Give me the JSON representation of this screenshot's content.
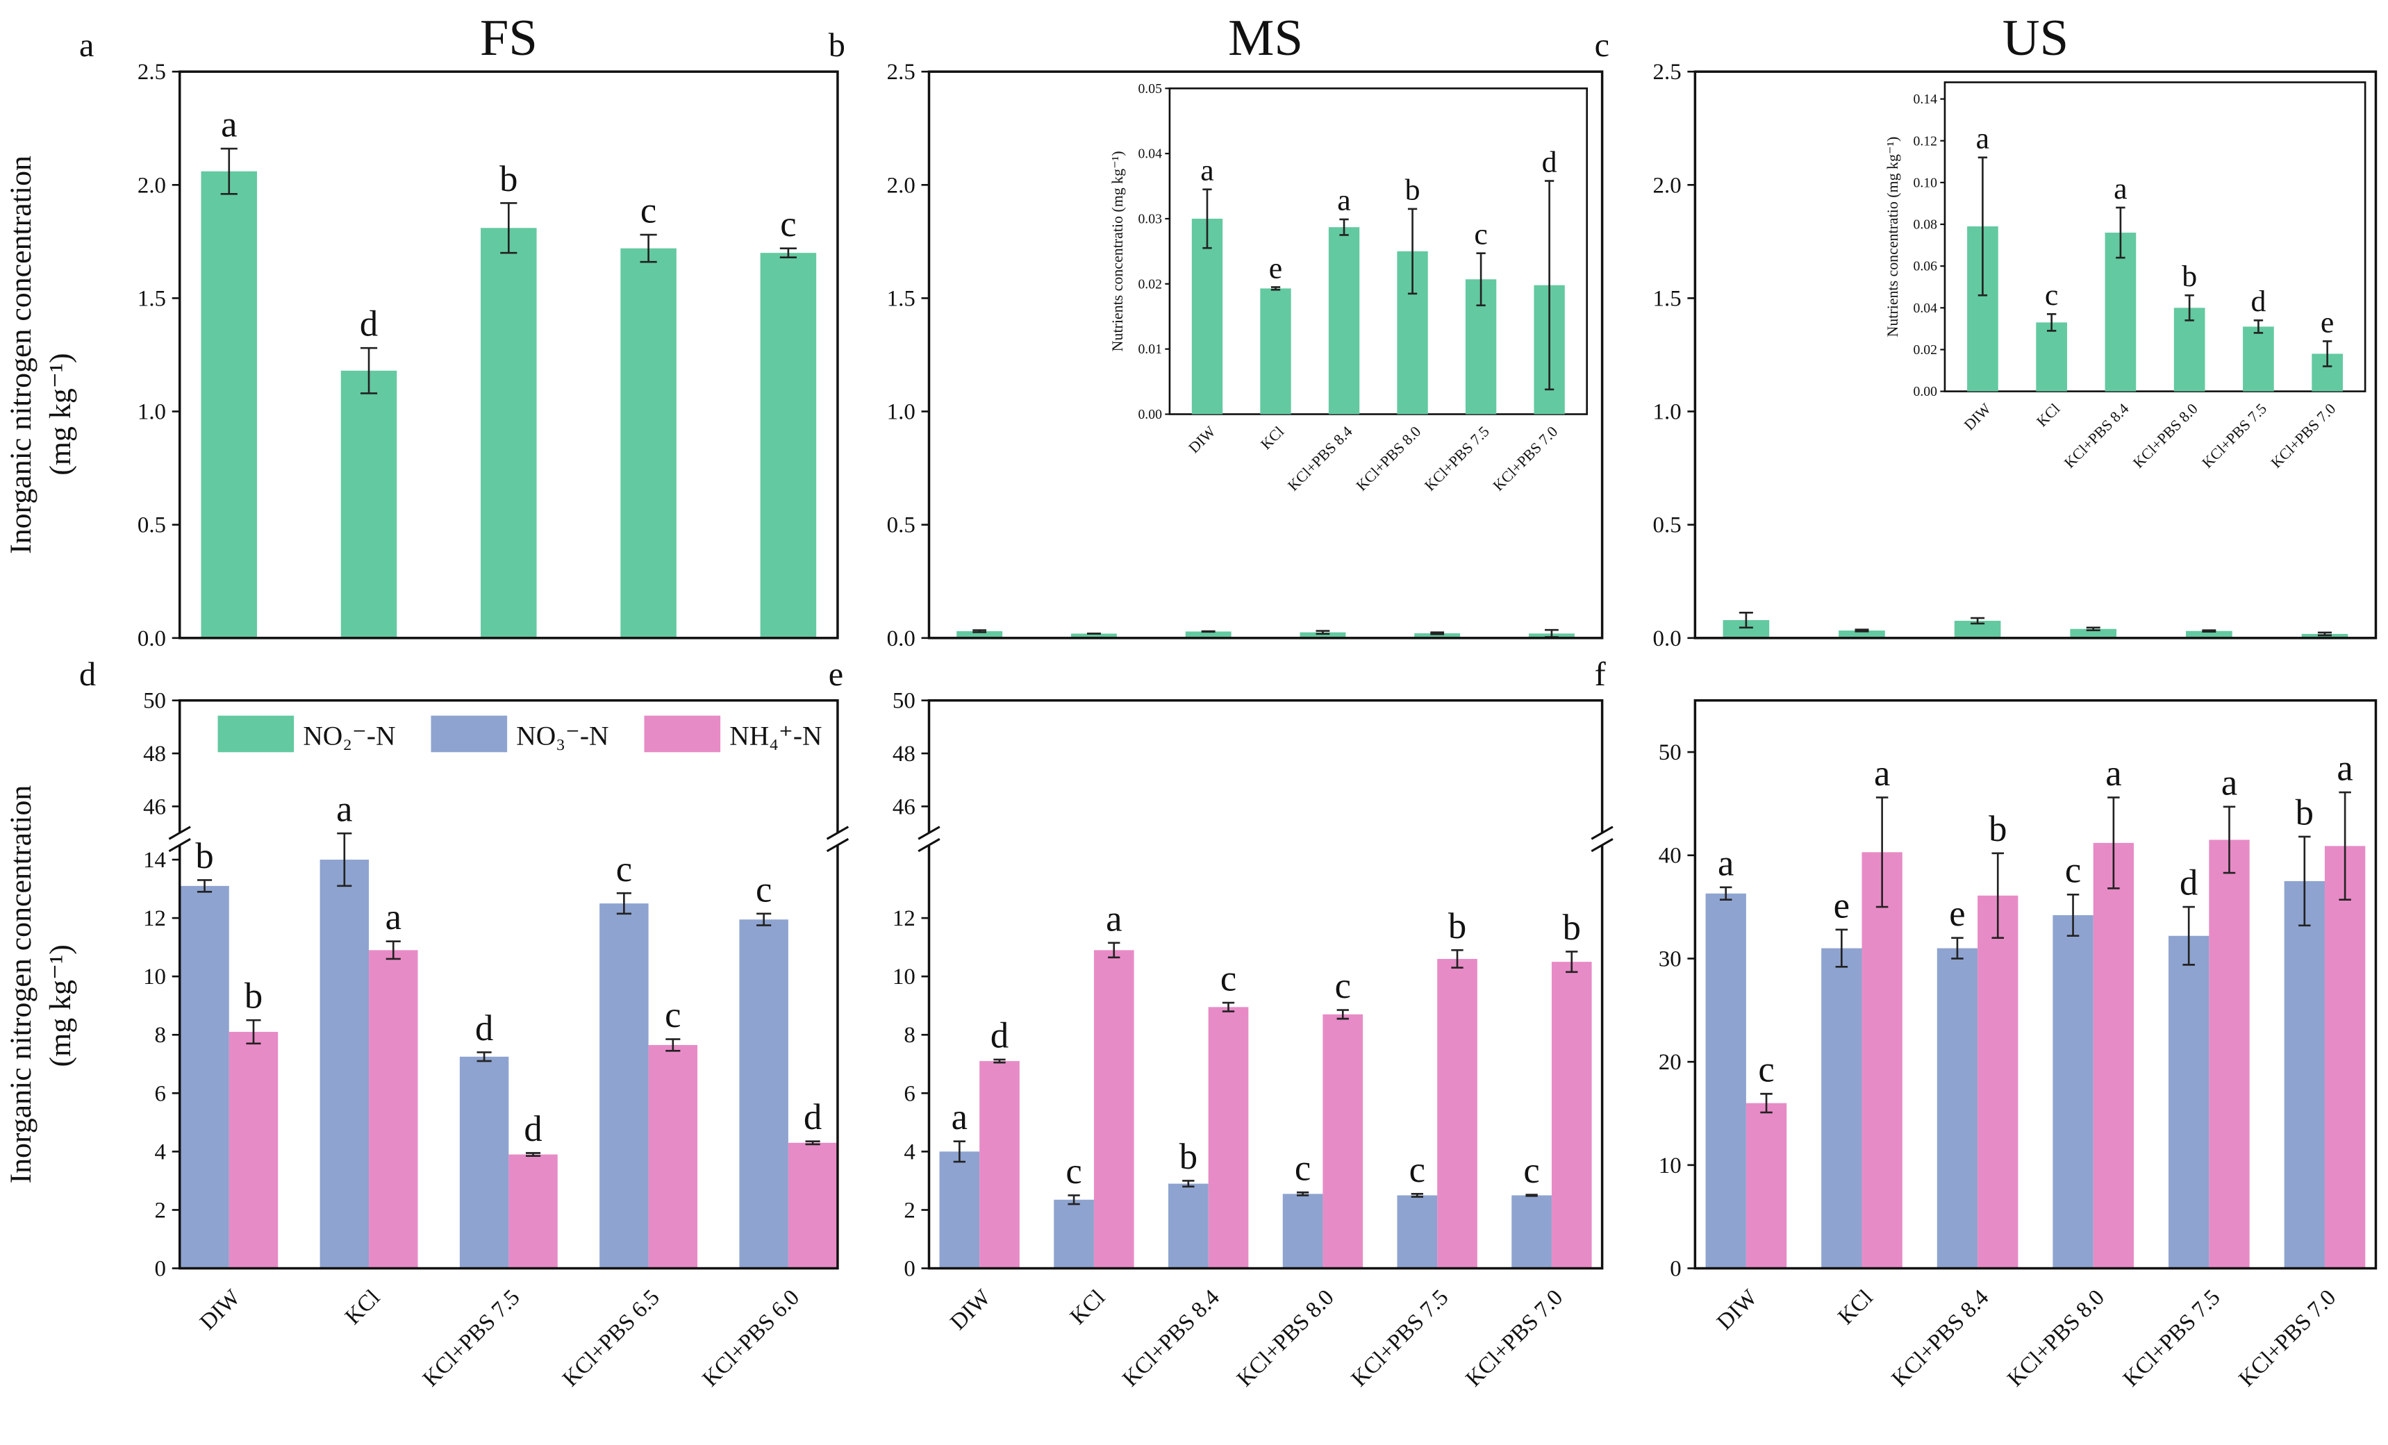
{
  "chart_data": [
    {
      "type": "bar",
      "panel": "a",
      "title": "FS",
      "ylabel": [
        "Inorganic nitrogen concentration",
        "(mg kg⁻¹)"
      ],
      "ylim": [
        0,
        2.5
      ],
      "yticks": [
        {
          "value": 0,
          "label": "0.0"
        },
        0.5,
        {
          "value": 1,
          "label": "1.0"
        },
        1.5,
        {
          "value": 2,
          "label": "2.0"
        },
        2.5
      ],
      "series": [
        {
          "color": "#63c9a0",
          "values": [
            2.06,
            1.18,
            1.81,
            1.72,
            1.7
          ],
          "errors": [
            0.1,
            0.1,
            0.11,
            0.06,
            0.02
          ],
          "letters": [
            "a",
            "d",
            "b",
            "c",
            "c"
          ]
        }
      ]
    },
    {
      "type": "bar",
      "panel": "b",
      "title": "MS",
      "ylim": [
        0,
        2.5
      ],
      "yticks": [
        {
          "value": 0,
          "label": "0.0"
        },
        0.5,
        {
          "value": 1,
          "label": "1.0"
        },
        1.5,
        {
          "value": 2,
          "label": "2.0"
        },
        2.5
      ],
      "series": [
        {
          "color": "#63c9a0",
          "values": [
            0.03,
            0.0193,
            0.0287,
            0.025,
            0.0207,
            0.0198
          ],
          "errors": [
            0.0045,
            0.0002,
            0.0012,
            0.0065,
            0.004,
            0.016
          ]
        }
      ],
      "inset": {
        "ylabel": "Nutrients concentratio (mg kg⁻¹)",
        "ylim": [
          0,
          0.05
        ],
        "yticks": [
          {
            "value": 0,
            "label": "0.00"
          },
          0.01,
          0.02,
          0.03,
          0.04,
          0.05
        ],
        "categories": [
          "DIW",
          "KCl",
          "KCl+PBS 8.4",
          "KCl+PBS 8.0",
          "KCl+PBS 7.5",
          "KCl+PBS 7.0"
        ],
        "letters": [
          "a",
          "e",
          "a",
          "b",
          "c",
          "d"
        ]
      }
    },
    {
      "type": "bar",
      "panel": "c",
      "title": "US",
      "ylim": [
        0,
        2.5
      ],
      "yticks": [
        {
          "value": 0,
          "label": "0.0"
        },
        0.5,
        {
          "value": 1,
          "label": "1.0"
        },
        1.5,
        {
          "value": 2,
          "label": "2.0"
        },
        2.5
      ],
      "series": [
        {
          "color": "#63c9a0",
          "values": [
            0.079,
            0.033,
            0.076,
            0.04,
            0.031,
            0.018
          ],
          "errors": [
            0.033,
            0.004,
            0.012,
            0.006,
            0.003,
            0.006
          ]
        }
      ],
      "inset": {
        "ylabel": "Nutrients concentratio (mg kg⁻¹)",
        "ylim": [
          0,
          0.148
        ],
        "yticks": [
          {
            "value": 0,
            "label": "0.00"
          },
          0.02,
          0.04,
          0.06,
          0.08,
          {
            "value": 0.1,
            "label": "0.10"
          },
          0.12,
          0.14
        ],
        "categories": [
          "DIW",
          "KCl",
          "KCl+PBS 8.4",
          "KCl+PBS 8.0",
          "KCl+PBS 7.5",
          "KCl+PBS 7.0"
        ],
        "letters": [
          "a",
          "c",
          "a",
          "b",
          "d",
          "e"
        ]
      }
    },
    {
      "type": "bar",
      "panel": "d",
      "ylabel": [
        "Inorganic nitrogen concentration",
        "(mg kg⁻¹)"
      ],
      "ylim": [
        0,
        14.5
      ],
      "yticks": [
        0,
        2,
        4,
        6,
        8,
        10,
        12,
        14
      ],
      "broken_axis": {
        "ylim": [
          45,
          50
        ],
        "yticks": [
          46,
          48,
          50
        ]
      },
      "categories": [
        "DIW",
        "KCl",
        "KCl+PBS 7.5",
        "KCl+PBS 6.5",
        "KCl+PBS 6.0"
      ],
      "legend_swatches": [
        {
          "name": "NO₂⁻-N",
          "color": "#63c9a0"
        }
      ],
      "series": [
        {
          "name": "NO₃⁻-N",
          "color": "#8ea3cf",
          "values": [
            13.1,
            14.0,
            7.25,
            12.5,
            11.95
          ],
          "errors": [
            0.2,
            0.9,
            0.15,
            0.35,
            0.2
          ],
          "letters": [
            "b",
            "a",
            "d",
            "c",
            "c"
          ]
        },
        {
          "name": "NH₄⁺-N",
          "color": "#e78bc6",
          "values": [
            8.1,
            10.9,
            3.9,
            7.65,
            4.3
          ],
          "errors": [
            0.4,
            0.3,
            0.05,
            0.2,
            0.05
          ],
          "letters": [
            "b",
            "a",
            "d",
            "c",
            "d"
          ]
        }
      ]
    },
    {
      "type": "bar",
      "panel": "e",
      "ylim": [
        0,
        14.5
      ],
      "yticks": [
        0,
        2,
        4,
        6,
        8,
        10,
        12
      ],
      "broken_axis": {
        "ylim": [
          45,
          50
        ],
        "yticks": [
          46,
          48,
          50
        ]
      },
      "categories": [
        "DIW",
        "KCl",
        "KCl+PBS 8.4",
        "KCl+PBS 8.0",
        "KCl+PBS 7.5",
        "KCl+PBS 7.0"
      ],
      "series": [
        {
          "color": "#8ea3cf",
          "values": [
            4.0,
            2.35,
            2.9,
            2.55,
            2.5,
            2.5
          ],
          "errors": [
            0.35,
            0.15,
            0.1,
            0.05,
            0.05,
            0.02
          ],
          "letters": [
            "a",
            "c",
            "b",
            "c",
            "c",
            "c"
          ]
        },
        {
          "color": "#e78bc6",
          "values": [
            7.1,
            10.9,
            8.95,
            8.7,
            10.6,
            10.5
          ],
          "errors": [
            0.05,
            0.25,
            0.15,
            0.15,
            0.3,
            0.35
          ],
          "letters": [
            "d",
            "a",
            "c",
            "c",
            "b",
            "b"
          ]
        }
      ]
    },
    {
      "type": "bar",
      "panel": "f",
      "ylim": [
        0,
        55
      ],
      "yticks": [
        0,
        10,
        20,
        30,
        40,
        50
      ],
      "categories": [
        "DIW",
        "KCl",
        "KCl+PBS 8.4",
        "KCl+PBS 8.0",
        "KCl+PBS 7.5",
        "KCl+PBS 7.0"
      ],
      "series": [
        {
          "color": "#8ea3cf",
          "values": [
            36.3,
            31.0,
            31.0,
            34.2,
            32.2,
            37.5
          ],
          "errors": [
            0.6,
            1.8,
            1.0,
            2.0,
            2.8,
            4.3
          ],
          "letters": [
            "a",
            "e",
            "e",
            "c",
            "d",
            "b"
          ]
        },
        {
          "color": "#e78bc6",
          "values": [
            16.0,
            40.3,
            36.1,
            41.2,
            41.5,
            40.9
          ],
          "errors": [
            0.9,
            5.3,
            4.1,
            4.4,
            3.2,
            5.2
          ],
          "letters": [
            "c",
            "a",
            "b",
            "a",
            "a",
            "a"
          ]
        }
      ]
    }
  ]
}
